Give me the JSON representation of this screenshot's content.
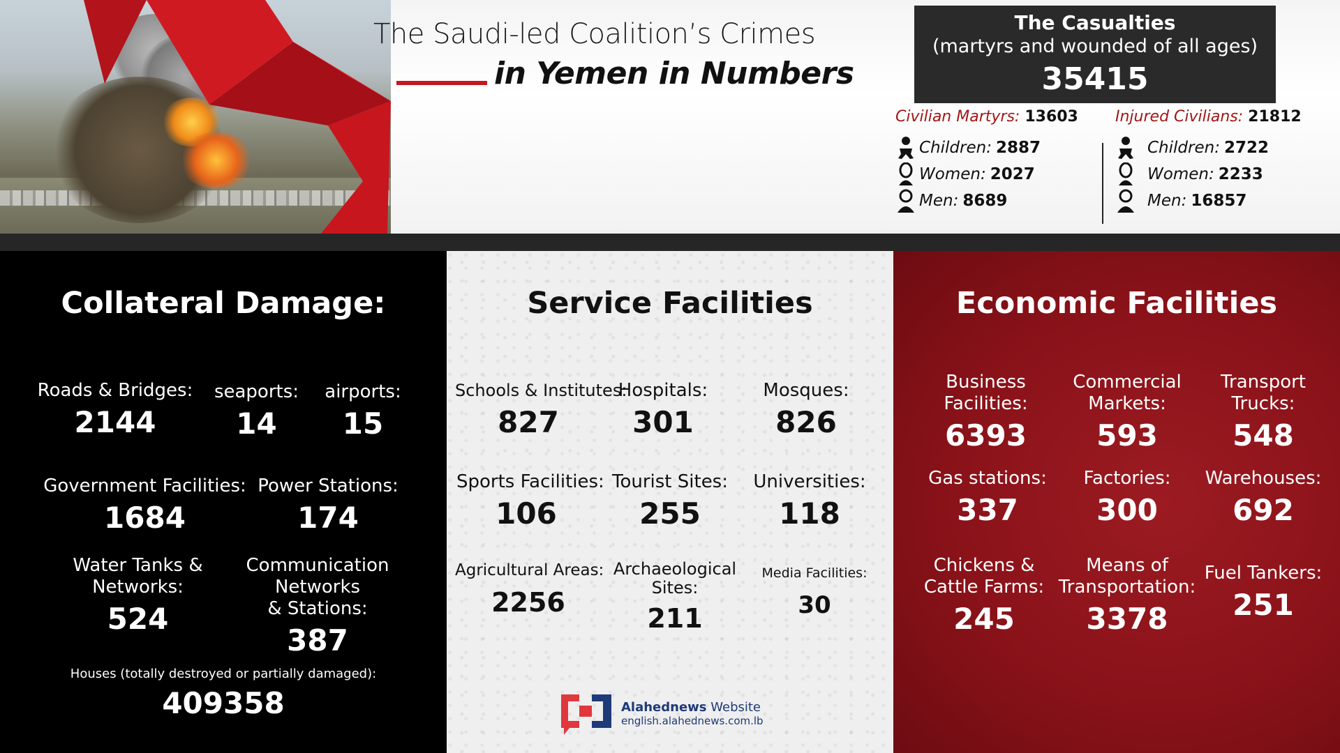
{
  "header": {
    "title_line1": "The Saudi-led Coalition’s Crimes",
    "title_line2": "in Yemen in Numbers"
  },
  "casualties": {
    "title": "The Casualties",
    "subtitle": "(martyrs and wounded of all ages)",
    "total": "35415",
    "martyrs": {
      "label": "Civilian Martyrs:",
      "value": "13603",
      "rows": [
        {
          "label": "Children:",
          "value": "2887",
          "icon": "child-icon"
        },
        {
          "label": "Women:",
          "value": "2027",
          "icon": "woman-icon"
        },
        {
          "label": "Men:",
          "value": "8689",
          "icon": "man-icon"
        }
      ]
    },
    "injured": {
      "label": "Injured Civilians:",
      "value": "21812",
      "rows": [
        {
          "label": "Children:",
          "value": "2722",
          "icon": "child-icon"
        },
        {
          "label": "Women:",
          "value": "2233",
          "icon": "woman-icon"
        },
        {
          "label": "Men:",
          "value": "16857",
          "icon": "man-icon"
        }
      ]
    }
  },
  "collateral": {
    "title": "Collateral Damage:",
    "roads_label": "Roads & Bridges:",
    "roads": "2144",
    "seaports_label": "seaports:",
    "seaports": "14",
    "airports_label": "airports:",
    "airports": "15",
    "gov_label": "Government Facilities:",
    "gov": "1684",
    "power_label": "Power Stations:",
    "power": "174",
    "water_label1": "Water Tanks &",
    "water_label2": "Networks:",
    "water": "524",
    "comm_label1": "Communication",
    "comm_label2": "Networks",
    "comm_label3": "& Stations:",
    "comm": "387",
    "houses_label": "Houses (totally destroyed or partially damaged):",
    "houses": "409358"
  },
  "service": {
    "title": "Service Facilities",
    "schools_label": "Schools & Institutes:",
    "schools": "827",
    "hospitals_label": "Hospitals:",
    "hospitals": "301",
    "mosques_label": "Mosques:",
    "mosques": "826",
    "sports_label": "Sports Facilities:",
    "sports": "106",
    "tourist_label": "Tourist Sites:",
    "tourist": "255",
    "universities_label": "Universities:",
    "universities": "118",
    "agri_label": "Agricultural Areas:",
    "agri": "2256",
    "arch_label1": "Archaeological",
    "arch_label2": "Sites:",
    "arch": "211",
    "media_label": "Media Facilities:",
    "media": "30"
  },
  "economic": {
    "title": "Economic Facilities",
    "business_label1": "Business",
    "business_label2": "Facilities:",
    "business": "6393",
    "markets_label1": "Commercial",
    "markets_label2": "Markets:",
    "markets": "593",
    "trucks_label1": "Transport",
    "trucks_label2": "Trucks:",
    "trucks": "548",
    "gas_label": "Gas stations:",
    "gas": "337",
    "factories_label": "Factories:",
    "factories": "300",
    "warehouses_label": "Warehouses:",
    "warehouses": "692",
    "farms_label1": "Chickens &",
    "farms_label2": "Cattle Farms:",
    "farms": "245",
    "transport_label1": "Means of",
    "transport_label2": "Transportation:",
    "transport": "3378",
    "fuel_label": "Fuel Tankers:",
    "fuel": "251"
  },
  "logo": {
    "name_bold": "Alahednews",
    "name_rest": " Website",
    "url": "english.alahednews.com.lb"
  },
  "colors": {
    "accent_red": "#c8161e",
    "panel_red": "#8a1219",
    "label_red": "#a01818",
    "dark_box": "#2a2a2a"
  }
}
